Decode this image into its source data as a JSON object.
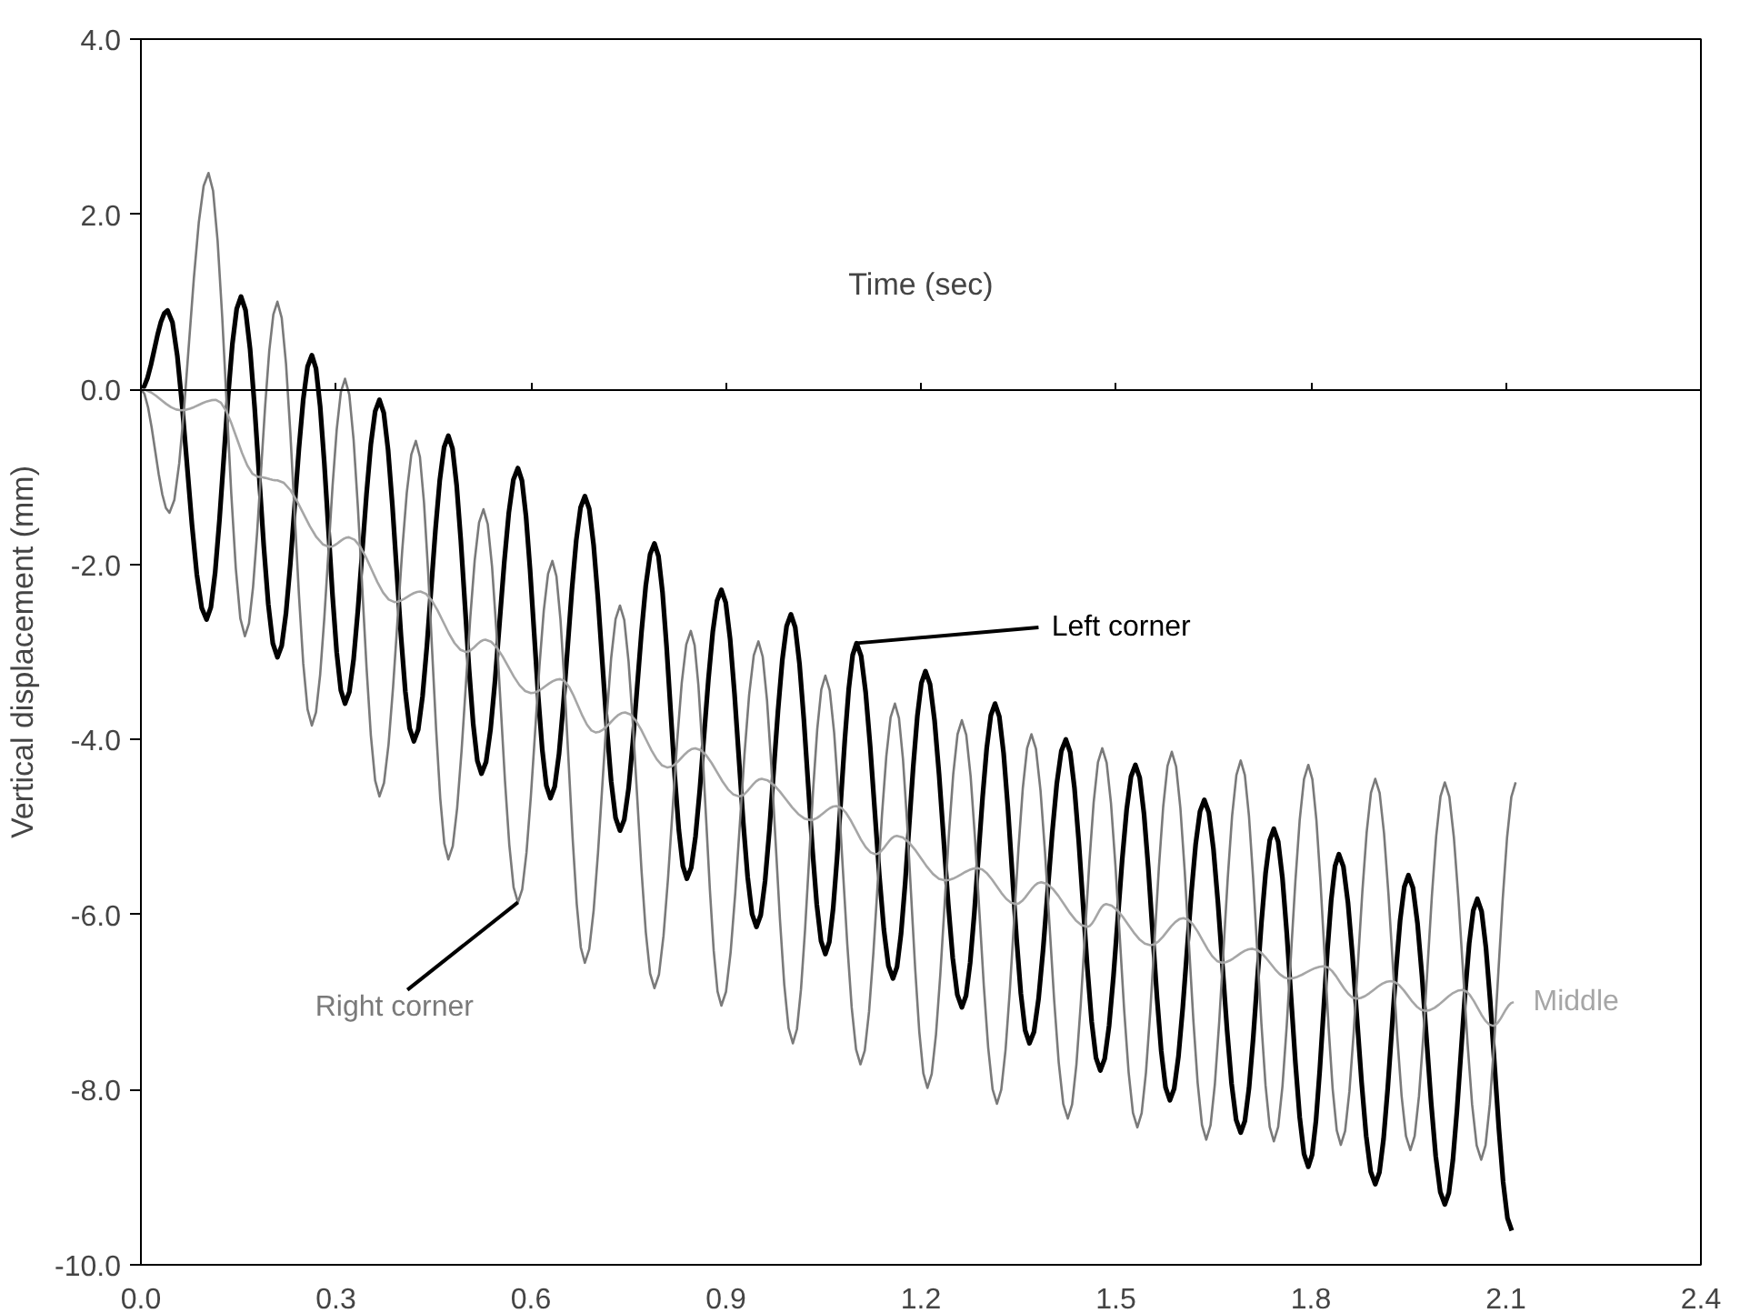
{
  "chart_data": {
    "type": "line",
    "xlabel": "Time (sec)",
    "ylabel": "Vertical displacement (mm)",
    "xlim": [
      0,
      2.4
    ],
    "ylim": [
      -10,
      4
    ],
    "xticks": [
      {
        "value": 0,
        "label": "0.0"
      },
      0.3,
      0.6,
      0.9,
      1.2,
      1.5,
      1.8,
      2.1,
      2.4
    ],
    "yticks": [
      {
        "value": -10,
        "label": "-10.0"
      },
      {
        "value": -8,
        "label": "-8.0"
      },
      {
        "value": -6,
        "label": "-6.0"
      },
      {
        "value": -4,
        "label": "-4.0"
      },
      {
        "value": -2,
        "label": "-2.0"
      },
      {
        "value": 0,
        "label": "0.0"
      },
      {
        "value": 2,
        "label": "2.0"
      },
      {
        "value": 4,
        "label": "4.0"
      }
    ],
    "series": [
      {
        "name": "Left corner",
        "color": "#000000",
        "x": [
          0,
          0.041,
          0.101,
          0.154,
          0.21,
          0.263,
          0.314,
          0.367,
          0.42,
          0.473,
          0.524,
          0.58,
          0.63,
          0.683,
          0.737,
          0.79,
          0.84,
          0.893,
          0.947,
          1.0,
          1.053,
          1.101,
          1.157,
          1.207,
          1.263,
          1.314,
          1.367,
          1.423,
          1.476,
          1.53,
          1.583,
          1.636,
          1.692,
          1.743,
          1.796,
          1.843,
          1.899,
          1.95,
          2.006,
          2.056,
          2.109
        ],
        "values": [
          0,
          0.9,
          -2.63,
          1.06,
          -3.06,
          0.39,
          -3.59,
          -0.12,
          -4.02,
          -0.53,
          -4.39,
          -0.9,
          -4.67,
          -1.22,
          -5.04,
          -1.76,
          -5.59,
          -2.29,
          -6.14,
          -2.57,
          -6.45,
          -2.9,
          -6.73,
          -3.22,
          -7.06,
          -3.59,
          -7.47,
          -4.0,
          -7.78,
          -4.29,
          -8.12,
          -4.69,
          -8.49,
          -5.02,
          -8.88,
          -5.31,
          -9.08,
          -5.55,
          -9.31,
          -5.82,
          -9.61
        ]
      },
      {
        "name": "Right corner",
        "color": "#7a7a7a",
        "x": [
          0,
          0.044,
          0.104,
          0.16,
          0.21,
          0.263,
          0.314,
          0.367,
          0.423,
          0.473,
          0.527,
          0.58,
          0.633,
          0.683,
          0.737,
          0.79,
          0.846,
          0.893,
          0.95,
          1.003,
          1.053,
          1.107,
          1.16,
          1.21,
          1.263,
          1.317,
          1.37,
          1.426,
          1.479,
          1.533,
          1.586,
          1.639,
          1.692,
          1.743,
          1.796,
          1.846,
          1.899,
          1.953,
          2.006,
          2.062,
          2.115
        ],
        "values": [
          0,
          -1.41,
          2.47,
          -2.82,
          1.0,
          -3.84,
          0.12,
          -4.65,
          -0.59,
          -5.37,
          -1.37,
          -5.86,
          -1.96,
          -6.55,
          -2.47,
          -6.84,
          -2.76,
          -7.04,
          -2.88,
          -7.47,
          -3.27,
          -7.71,
          -3.59,
          -7.98,
          -3.78,
          -8.16,
          -3.94,
          -8.33,
          -4.1,
          -8.43,
          -4.14,
          -8.57,
          -4.24,
          -8.59,
          -4.29,
          -8.63,
          -4.45,
          -8.69,
          -4.49,
          -8.8,
          -4.49
        ]
      },
      {
        "name": "Middle",
        "color": "#a6a6a6",
        "x": [
          0,
          0.062,
          0.115,
          0.18,
          0.21,
          0.29,
          0.32,
          0.39,
          0.43,
          0.5,
          0.53,
          0.6,
          0.645,
          0.7,
          0.745,
          0.81,
          0.853,
          0.92,
          0.955,
          1.03,
          1.07,
          1.13,
          1.163,
          1.237,
          1.287,
          1.346,
          1.385,
          1.456,
          1.485,
          1.553,
          1.604,
          1.663,
          1.71,
          1.766,
          1.82,
          1.87,
          1.923,
          1.976,
          2.033,
          2.08,
          2.112
        ],
        "values": [
          0,
          -0.24,
          -0.12,
          -1.0,
          -1.04,
          -1.8,
          -1.69,
          -2.43,
          -2.31,
          -3.0,
          -2.86,
          -3.47,
          -3.31,
          -3.92,
          -3.69,
          -4.32,
          -4.1,
          -4.65,
          -4.45,
          -4.92,
          -4.76,
          -5.31,
          -5.1,
          -5.61,
          -5.47,
          -5.88,
          -5.63,
          -6.14,
          -5.88,
          -6.35,
          -6.04,
          -6.55,
          -6.39,
          -6.73,
          -6.59,
          -6.96,
          -6.76,
          -7.1,
          -6.86,
          -7.27,
          -7.0
        ]
      }
    ]
  }
}
